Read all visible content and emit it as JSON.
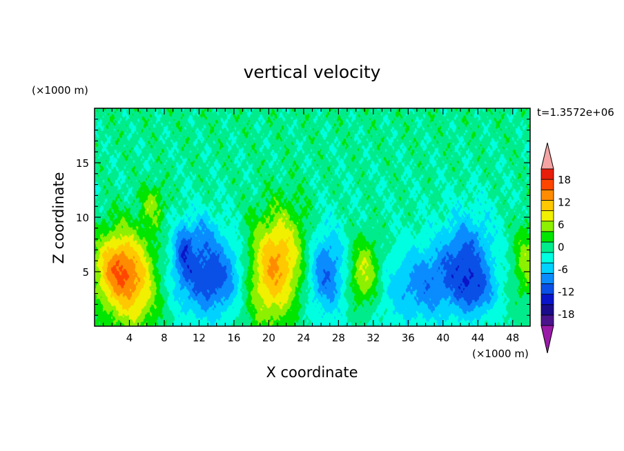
{
  "chart_data": {
    "type": "heatmap",
    "title": "vertical velocity",
    "xlabel": "X coordinate",
    "ylabel": "Z coordinate",
    "x_unit": "(×1000 m)",
    "y_unit": "(×1000 m)",
    "time_label": "t=1.3572e+06",
    "xlim": [
      0,
      50
    ],
    "ylim": [
      0,
      20
    ],
    "x_ticks": [
      4,
      8,
      12,
      16,
      20,
      24,
      28,
      32,
      36,
      40,
      44,
      48
    ],
    "y_ticks": [
      5,
      10,
      15
    ],
    "colorbar": {
      "levels": [
        -21,
        -18,
        -15,
        -12,
        -9,
        -6,
        -3,
        0,
        3,
        6,
        9,
        12,
        15,
        18,
        21
      ],
      "labels": [
        18,
        12,
        6,
        0,
        -6,
        -12,
        -18
      ],
      "colors": [
        "#4a148c",
        "#1a0c8a",
        "#0a14c8",
        "#0a50e6",
        "#0a8cff",
        "#00d2ff",
        "#00ffe0",
        "#00ec8c",
        "#00e600",
        "#8cf000",
        "#f0f000",
        "#ffc800",
        "#ff8c00",
        "#ff4600",
        "#e61e0a"
      ],
      "under_color": "#9a1aa8",
      "over_color": "#f5a3a3"
    },
    "features": [
      {
        "x": 4.0,
        "z": 4.3,
        "w": -10,
        "sx": 2.4,
        "sz": 3.2,
        "amp": 15,
        "ang": -10
      },
      {
        "x": 2.0,
        "z": 5.5,
        "w": 0,
        "sx": 1.6,
        "sz": 2.0,
        "amp": 6,
        "ang": 0
      },
      {
        "x": 6.8,
        "z": 11.2,
        "w": 0,
        "sx": 1.0,
        "sz": 1.4,
        "amp": 6,
        "ang": 0
      },
      {
        "x": 10.2,
        "z": 7.2,
        "w": 0,
        "sx": 0.8,
        "sz": 1.8,
        "amp": -7,
        "ang": 0
      },
      {
        "x": 13.5,
        "z": 4.5,
        "w": 0,
        "sx": 3.4,
        "sz": 2.6,
        "amp": -12,
        "ang": 0
      },
      {
        "x": 12.5,
        "z": 8.5,
        "w": 0,
        "sx": 1.2,
        "sz": 1.5,
        "amp": -4,
        "ang": 0
      },
      {
        "x": 20.5,
        "z": 5.3,
        "w": 0,
        "sx": 2.4,
        "sz": 3.6,
        "amp": 16,
        "ang": 15
      },
      {
        "x": 26.5,
        "z": 5.0,
        "w": 0,
        "sx": 1.6,
        "sz": 2.8,
        "amp": -10,
        "ang": 0
      },
      {
        "x": 31.0,
        "z": 4.8,
        "w": 0,
        "sx": 1.3,
        "sz": 2.2,
        "amp": 10,
        "ang": 0
      },
      {
        "x": 35.0,
        "z": 3.5,
        "w": 0,
        "sx": 3.0,
        "sz": 2.5,
        "amp": -4,
        "ang": 0
      },
      {
        "x": 42.5,
        "z": 5.8,
        "w": 0,
        "sx": 2.2,
        "sz": 3.0,
        "amp": -11,
        "ang": 10
      },
      {
        "x": 44.0,
        "z": 3.0,
        "w": 0,
        "sx": 1.5,
        "sz": 1.5,
        "amp": -6,
        "ang": 0
      },
      {
        "x": 49.5,
        "z": 6.0,
        "w": 0,
        "sx": 1.0,
        "sz": 2.5,
        "amp": 7,
        "ang": 0
      },
      {
        "x": 38.0,
        "z": 4.0,
        "w": 0,
        "sx": 2.0,
        "sz": 2.5,
        "amp": -5,
        "ang": 0
      }
    ]
  }
}
